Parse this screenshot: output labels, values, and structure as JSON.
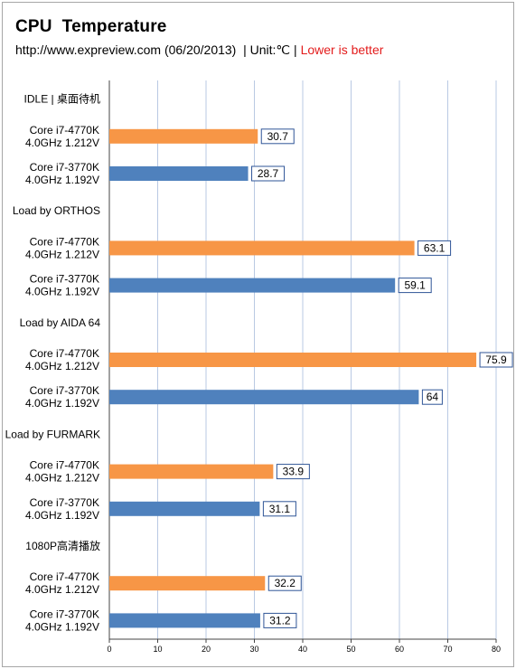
{
  "header": {
    "title": "CPU  Temperature",
    "subtitle_main": "http://www.expreview.com (06/20/2013)  | Unit:℃ | ",
    "subtitle_note": "Lower is better"
  },
  "colors": {
    "series_4770k": "#f79646",
    "series_3770k": "#4f81bd",
    "grid": "#b9c9e3",
    "label_border": "#2f5597"
  },
  "chart_data": {
    "type": "bar",
    "orientation": "horizontal",
    "title": "CPU  Temperature",
    "subtitle": "http://www.expreview.com (06/20/2013)  | Unit:℃ | Lower is better",
    "xlim": [
      0,
      80
    ],
    "x_ticks": [
      "0",
      "10",
      "20",
      "30",
      "40",
      "50",
      "60",
      "70",
      "80"
    ],
    "grid": true,
    "rows": [
      {
        "kind": "group",
        "label": "IDLE | 桌面待机"
      },
      {
        "kind": "bar",
        "label": [
          "Core i7-4770K",
          "4.0GHz 1.212V"
        ],
        "series": "4770k",
        "value": 30.7,
        "value_label": "30.7"
      },
      {
        "kind": "bar",
        "label": [
          "Core i7-3770K",
          "4.0GHz 1.192V"
        ],
        "series": "3770k",
        "value": 28.7,
        "value_label": "28.7"
      },
      {
        "kind": "group",
        "label": "Load by ORTHOS"
      },
      {
        "kind": "bar",
        "label": [
          "Core i7-4770K",
          "4.0GHz 1.212V"
        ],
        "series": "4770k",
        "value": 63.1,
        "value_label": "63.1"
      },
      {
        "kind": "bar",
        "label": [
          "Core i7-3770K",
          "4.0GHz 1.192V"
        ],
        "series": "3770k",
        "value": 59.1,
        "value_label": "59.1"
      },
      {
        "kind": "group",
        "label": "Load by AIDA 64"
      },
      {
        "kind": "bar",
        "label": [
          "Core i7-4770K",
          "4.0GHz 1.212V"
        ],
        "series": "4770k",
        "value": 75.9,
        "value_label": "75.9"
      },
      {
        "kind": "bar",
        "label": [
          "Core i7-3770K",
          "4.0GHz 1.192V"
        ],
        "series": "3770k",
        "value": 64,
        "value_label": "64"
      },
      {
        "kind": "group",
        "label": "Load by FURMARK"
      },
      {
        "kind": "bar",
        "label": [
          "Core i7-4770K",
          "4.0GHz 1.212V"
        ],
        "series": "4770k",
        "value": 33.9,
        "value_label": "33.9"
      },
      {
        "kind": "bar",
        "label": [
          "Core i7-3770K",
          "4.0GHz 1.192V"
        ],
        "series": "3770k",
        "value": 31.1,
        "value_label": "31.1"
      },
      {
        "kind": "group",
        "label": "1080P高清播放"
      },
      {
        "kind": "bar",
        "label": [
          "Core i7-4770K",
          "4.0GHz 1.212V"
        ],
        "series": "4770k",
        "value": 32.2,
        "value_label": "32.2"
      },
      {
        "kind": "bar",
        "label": [
          "Core i7-3770K",
          "4.0GHz 1.192V"
        ],
        "series": "3770k",
        "value": 31.2,
        "value_label": "31.2"
      }
    ]
  }
}
